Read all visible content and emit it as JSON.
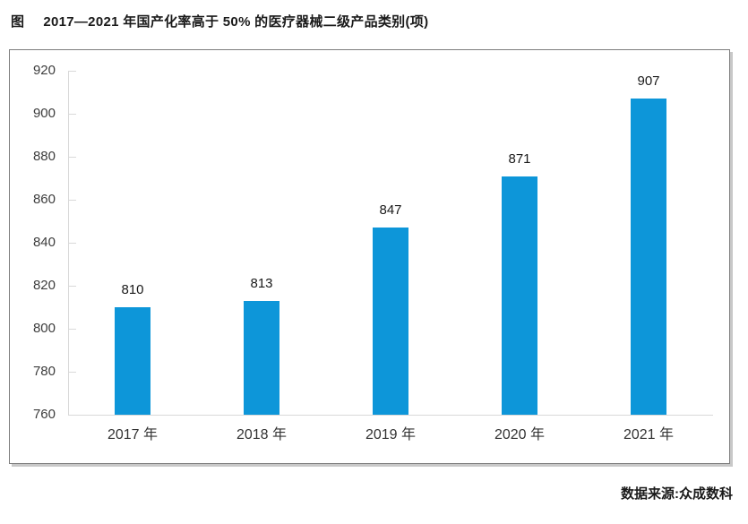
{
  "title": {
    "prefix": "图",
    "text": "2017—2021 年国产化率高于 50% 的医疗器械二级产品类别(项)"
  },
  "source": "数据来源:众成数科",
  "chart_data": {
    "type": "bar",
    "title": "2017—2021 年国产化率高于 50% 的医疗器械二级产品类别(项)",
    "categories": [
      "2017 年",
      "2018 年",
      "2019 年",
      "2020 年",
      "2021 年"
    ],
    "values": [
      810,
      813,
      847,
      871,
      907
    ],
    "xlabel": "",
    "ylabel": "",
    "ylim": [
      760,
      920
    ],
    "ytick_step": 20,
    "yticks": [
      920,
      900,
      880,
      860,
      840,
      820,
      800,
      780,
      760
    ],
    "grid": false,
    "legend_position": "none",
    "value_labels_shown": true,
    "bar_color": "#0d96d9",
    "axis_color": "#d9d9d9"
  }
}
